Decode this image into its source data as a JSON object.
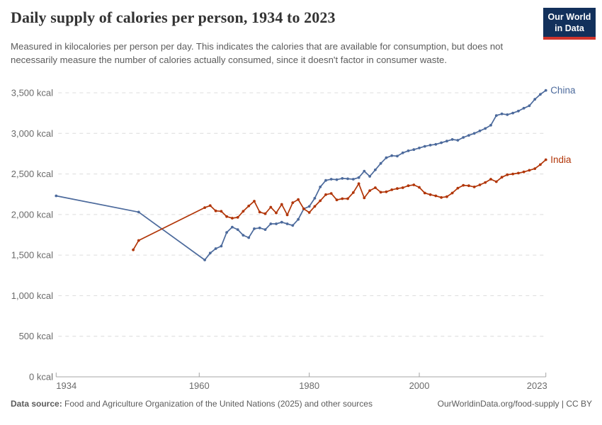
{
  "header": {
    "title": "Daily supply of calories per person, 1934 to 2023",
    "subtitle": "Measured in kilocalories per person per day. This indicates the calories that are available for consumption, but does not necessarily measure the number of calories actually consumed, since it doesn't factor in consumer waste.",
    "logo_line1": "Our World",
    "logo_line2": "in Data"
  },
  "footer": {
    "source_label": "Data source:",
    "source_text": " Food and Agriculture Organization of the United Nations (2025) and other sources",
    "right_text": "OurWorldinData.org/food-supply | CC BY"
  },
  "colors": {
    "china": "#4C6A9C",
    "india": "#B13507",
    "grid": "#dcdcdc",
    "axis": "#a5a5a5",
    "tick_label": "#6b6b6b",
    "logo_bg": "#12305B",
    "logo_accent": "#D0342C"
  },
  "chart_data": {
    "type": "line",
    "title": "Daily supply of calories per person, 1934 to 2023",
    "unit": "kcal",
    "xlim": [
      1934,
      2023
    ],
    "ylim": [
      0,
      3500
    ],
    "grid": "horizontal-dashed",
    "legend_position": "end-of-line-labels",
    "x_ticks": [
      {
        "value": 1934,
        "label": "1934"
      },
      {
        "value": 1960,
        "label": "1960"
      },
      {
        "value": 1980,
        "label": "1980"
      },
      {
        "value": 2000,
        "label": "2000"
      },
      {
        "value": 2023,
        "label": "2023"
      }
    ],
    "y_ticks": [
      {
        "value": 0,
        "label": "0 kcal"
      },
      {
        "value": 500,
        "label": "500 kcal"
      },
      {
        "value": 1000,
        "label": "1,000 kcal"
      },
      {
        "value": 1500,
        "label": "1,500 kcal"
      },
      {
        "value": 2000,
        "label": "2,000 kcal"
      },
      {
        "value": 2500,
        "label": "2,500 kcal"
      },
      {
        "value": 3000,
        "label": "3,000 kcal"
      },
      {
        "value": 3500,
        "label": "3,500 kcal"
      }
    ],
    "series": [
      {
        "name": "China",
        "color": "#4C6A9C",
        "points": [
          [
            1934,
            2230
          ],
          [
            1949,
            2030
          ],
          [
            1961,
            1440
          ],
          [
            1962,
            1525
          ],
          [
            1963,
            1580
          ],
          [
            1964,
            1610
          ],
          [
            1965,
            1780
          ],
          [
            1966,
            1845
          ],
          [
            1967,
            1815
          ],
          [
            1968,
            1745
          ],
          [
            1969,
            1715
          ],
          [
            1970,
            1825
          ],
          [
            1971,
            1835
          ],
          [
            1972,
            1815
          ],
          [
            1973,
            1885
          ],
          [
            1974,
            1885
          ],
          [
            1975,
            1905
          ],
          [
            1976,
            1885
          ],
          [
            1977,
            1865
          ],
          [
            1978,
            1940
          ],
          [
            1979,
            2070
          ],
          [
            1980,
            2100
          ],
          [
            1981,
            2200
          ],
          [
            1982,
            2340
          ],
          [
            1983,
            2420
          ],
          [
            1984,
            2435
          ],
          [
            1985,
            2430
          ],
          [
            1986,
            2445
          ],
          [
            1987,
            2440
          ],
          [
            1988,
            2435
          ],
          [
            1989,
            2455
          ],
          [
            1990,
            2535
          ],
          [
            1991,
            2470
          ],
          [
            1992,
            2550
          ],
          [
            1993,
            2630
          ],
          [
            1994,
            2700
          ],
          [
            1995,
            2725
          ],
          [
            1996,
            2720
          ],
          [
            1997,
            2760
          ],
          [
            1998,
            2785
          ],
          [
            1999,
            2800
          ],
          [
            2000,
            2820
          ],
          [
            2001,
            2840
          ],
          [
            2002,
            2855
          ],
          [
            2003,
            2865
          ],
          [
            2004,
            2885
          ],
          [
            2005,
            2905
          ],
          [
            2006,
            2925
          ],
          [
            2007,
            2915
          ],
          [
            2008,
            2950
          ],
          [
            2009,
            2975
          ],
          [
            2010,
            3000
          ],
          [
            2011,
            3030
          ],
          [
            2012,
            3060
          ],
          [
            2013,
            3100
          ],
          [
            2014,
            3220
          ],
          [
            2015,
            3240
          ],
          [
            2016,
            3230
          ],
          [
            2017,
            3250
          ],
          [
            2018,
            3275
          ],
          [
            2019,
            3310
          ],
          [
            2020,
            3340
          ],
          [
            2021,
            3420
          ],
          [
            2022,
            3480
          ],
          [
            2023,
            3530
          ]
        ]
      },
      {
        "name": "India",
        "color": "#B13507",
        "points": [
          [
            1948,
            1565
          ],
          [
            1949,
            1680
          ],
          [
            1961,
            2085
          ],
          [
            1962,
            2110
          ],
          [
            1963,
            2045
          ],
          [
            1964,
            2040
          ],
          [
            1965,
            1975
          ],
          [
            1966,
            1955
          ],
          [
            1967,
            1965
          ],
          [
            1968,
            2040
          ],
          [
            1969,
            2105
          ],
          [
            1970,
            2165
          ],
          [
            1971,
            2030
          ],
          [
            1972,
            2010
          ],
          [
            1973,
            2090
          ],
          [
            1974,
            2020
          ],
          [
            1975,
            2125
          ],
          [
            1976,
            1995
          ],
          [
            1977,
            2145
          ],
          [
            1978,
            2185
          ],
          [
            1979,
            2070
          ],
          [
            1980,
            2025
          ],
          [
            1981,
            2100
          ],
          [
            1982,
            2170
          ],
          [
            1983,
            2245
          ],
          [
            1984,
            2260
          ],
          [
            1985,
            2180
          ],
          [
            1986,
            2195
          ],
          [
            1987,
            2195
          ],
          [
            1988,
            2270
          ],
          [
            1989,
            2380
          ],
          [
            1990,
            2205
          ],
          [
            1991,
            2295
          ],
          [
            1992,
            2330
          ],
          [
            1993,
            2275
          ],
          [
            1994,
            2280
          ],
          [
            1995,
            2305
          ],
          [
            1996,
            2320
          ],
          [
            1997,
            2330
          ],
          [
            1998,
            2355
          ],
          [
            1999,
            2365
          ],
          [
            2000,
            2335
          ],
          [
            2001,
            2265
          ],
          [
            2002,
            2245
          ],
          [
            2003,
            2230
          ],
          [
            2004,
            2210
          ],
          [
            2005,
            2220
          ],
          [
            2006,
            2265
          ],
          [
            2007,
            2325
          ],
          [
            2008,
            2360
          ],
          [
            2009,
            2355
          ],
          [
            2010,
            2340
          ],
          [
            2011,
            2365
          ],
          [
            2012,
            2395
          ],
          [
            2013,
            2435
          ],
          [
            2014,
            2405
          ],
          [
            2015,
            2460
          ],
          [
            2016,
            2490
          ],
          [
            2017,
            2500
          ],
          [
            2018,
            2510
          ],
          [
            2019,
            2525
          ],
          [
            2020,
            2545
          ],
          [
            2021,
            2565
          ],
          [
            2022,
            2615
          ],
          [
            2023,
            2675
          ]
        ]
      }
    ]
  }
}
